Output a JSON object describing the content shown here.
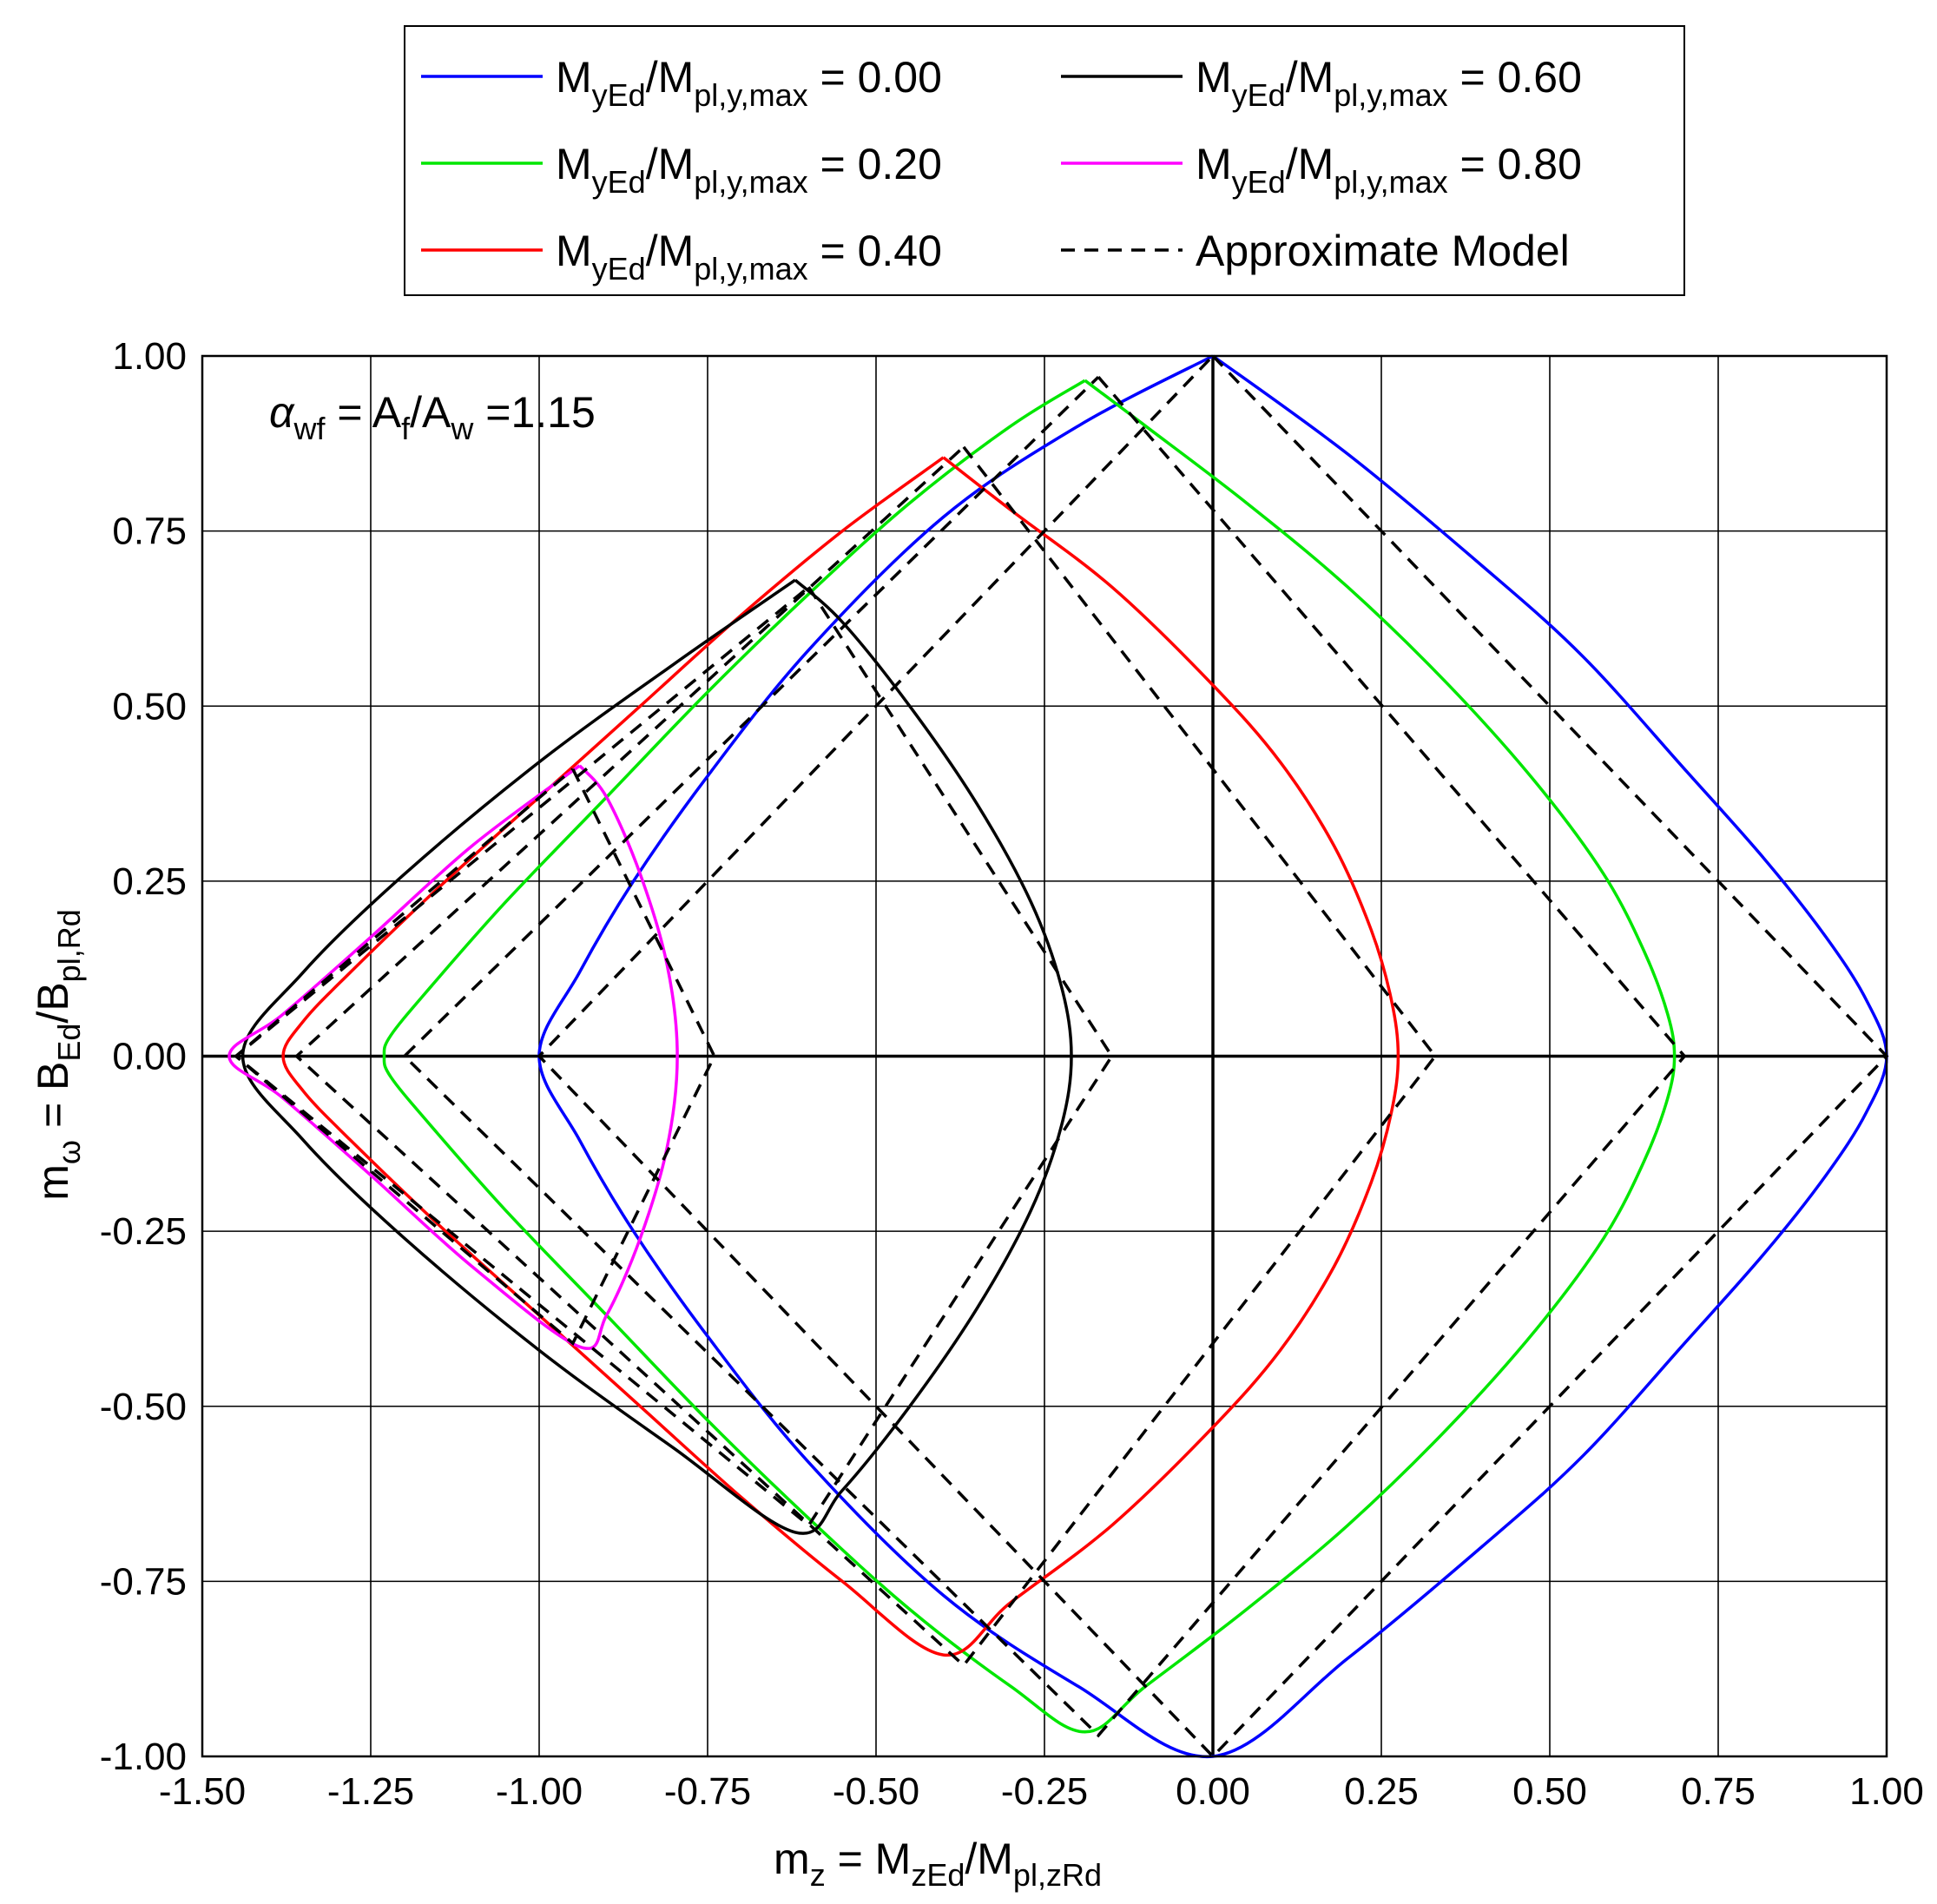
{
  "chart_data": {
    "type": "line",
    "title": "",
    "xlabel": {
      "parts": [
        "m",
        "z",
        " = M",
        "zEd",
        "/M",
        "pl,zRd"
      ]
    },
    "ylabel": {
      "parts": [
        "m",
        "ω",
        " = B",
        "Ed",
        "/B",
        "pl,Rd"
      ]
    },
    "xlim": [
      -1.5,
      1.0
    ],
    "ylim": [
      -1.0,
      1.0
    ],
    "xticks": [
      -1.5,
      -1.25,
      -1.0,
      -0.75,
      -0.5,
      -0.25,
      0.0,
      0.25,
      0.5,
      0.75,
      1.0
    ],
    "yticks": [
      -1.0,
      -0.75,
      -0.5,
      -0.25,
      0.0,
      0.25,
      0.5,
      0.75,
      1.0
    ],
    "xtick_labels": [
      "-1.50",
      "-1.25",
      "-1.00",
      "-0.75",
      "-0.50",
      "-0.25",
      "0.00",
      "0.25",
      "0.50",
      "0.75",
      "1.00"
    ],
    "ytick_labels": [
      "-1.00",
      "-0.75",
      "-0.50",
      "-0.25",
      "0.00",
      "0.25",
      "0.50",
      "0.75",
      "1.00"
    ],
    "grid": true,
    "legend_position": "top, above plot, two columns",
    "annotation": {
      "alpha": "α",
      "alpha_sub": "wf",
      "mid": " = A",
      "sub1": "f",
      "mid2": "/A",
      "sub2": "w",
      "value": " =1.15"
    },
    "series": [
      {
        "name": "MyEd/Mpl,y,max = 0.00",
        "legend": {
          "pre": "M",
          "s1": "yEd",
          "mid": "/M",
          "s2": "pl,y,max",
          "post": " = 0.00"
        },
        "color": "#0000ff",
        "style": "solid",
        "points": [
          [
            0.0,
            1.0
          ],
          [
            0.2,
            0.86
          ],
          [
            0.4,
            0.7
          ],
          [
            0.55,
            0.57
          ],
          [
            0.7,
            0.41
          ],
          [
            0.82,
            0.28
          ],
          [
            0.91,
            0.17
          ],
          [
            0.97,
            0.08
          ],
          [
            1.0,
            0.0
          ],
          [
            0.97,
            -0.08
          ],
          [
            0.91,
            -0.17
          ],
          [
            0.82,
            -0.28
          ],
          [
            0.7,
            -0.41
          ],
          [
            0.55,
            -0.57
          ],
          [
            0.4,
            -0.7
          ],
          [
            0.2,
            -0.86
          ],
          [
            0.0,
            -1.0
          ],
          [
            -0.2,
            -0.9
          ],
          [
            -0.4,
            -0.77
          ],
          [
            -0.6,
            -0.58
          ],
          [
            -0.75,
            -0.4
          ],
          [
            -0.86,
            -0.25
          ],
          [
            -0.94,
            -0.12
          ],
          [
            -1.0,
            0.0
          ],
          [
            -0.94,
            0.12
          ],
          [
            -0.86,
            0.25
          ],
          [
            -0.75,
            0.4
          ],
          [
            -0.6,
            0.58
          ],
          [
            -0.4,
            0.77
          ],
          [
            -0.2,
            0.9
          ],
          [
            0.0,
            1.0
          ]
        ]
      },
      {
        "name": "MyEd/Mpl,y,max = 0.20",
        "legend": {
          "pre": "M",
          "s1": "yEd",
          "mid": "/M",
          "s2": "pl,y,max",
          "post": " = 0.20"
        },
        "color": "#00e600",
        "style": "solid",
        "points": [
          [
            -0.19,
            0.965
          ],
          [
            -0.1,
            0.9
          ],
          [
            0.05,
            0.79
          ],
          [
            0.2,
            0.67
          ],
          [
            0.35,
            0.53
          ],
          [
            0.48,
            0.39
          ],
          [
            0.58,
            0.26
          ],
          [
            0.64,
            0.15
          ],
          [
            0.675,
            0.06
          ],
          [
            0.685,
            0.0
          ],
          [
            0.675,
            -0.06
          ],
          [
            0.64,
            -0.15
          ],
          [
            0.58,
            -0.26
          ],
          [
            0.48,
            -0.39
          ],
          [
            0.35,
            -0.53
          ],
          [
            0.2,
            -0.67
          ],
          [
            0.05,
            -0.79
          ],
          [
            -0.1,
            -0.9
          ],
          [
            -0.19,
            -0.965
          ],
          [
            -0.3,
            -0.9
          ],
          [
            -0.45,
            -0.79
          ],
          [
            -0.6,
            -0.66
          ],
          [
            -0.75,
            -0.52
          ],
          [
            -0.9,
            -0.37
          ],
          [
            -1.05,
            -0.22
          ],
          [
            -1.16,
            -0.1
          ],
          [
            -1.22,
            -0.03
          ],
          [
            -1.23,
            0.0
          ],
          [
            -1.22,
            0.03
          ],
          [
            -1.16,
            0.1
          ],
          [
            -1.05,
            0.22
          ],
          [
            -0.9,
            0.37
          ],
          [
            -0.75,
            0.52
          ],
          [
            -0.6,
            0.66
          ],
          [
            -0.45,
            0.79
          ],
          [
            -0.3,
            0.9
          ],
          [
            -0.19,
            0.965
          ]
        ]
      },
      {
        "name": "MyEd/Mpl,y,max = 0.40",
        "legend": {
          "pre": "M",
          "s1": "yEd",
          "mid": "/M",
          "s2": "pl,y,max",
          "post": " = 0.40"
        },
        "color": "#ff0000",
        "style": "solid",
        "points": [
          [
            -0.4,
            0.855
          ],
          [
            -0.3,
            0.78
          ],
          [
            -0.15,
            0.67
          ],
          [
            0.0,
            0.53
          ],
          [
            0.1,
            0.42
          ],
          [
            0.18,
            0.3
          ],
          [
            0.235,
            0.18
          ],
          [
            0.265,
            0.08
          ],
          [
            0.275,
            0.0
          ],
          [
            0.265,
            -0.08
          ],
          [
            0.235,
            -0.18
          ],
          [
            0.18,
            -0.3
          ],
          [
            0.1,
            -0.42
          ],
          [
            0.0,
            -0.53
          ],
          [
            -0.15,
            -0.67
          ],
          [
            -0.3,
            -0.78
          ],
          [
            -0.4,
            -0.855
          ],
          [
            -0.55,
            -0.75
          ],
          [
            -0.7,
            -0.63
          ],
          [
            -0.85,
            -0.5
          ],
          [
            -1.0,
            -0.37
          ],
          [
            -1.15,
            -0.24
          ],
          [
            -1.28,
            -0.12
          ],
          [
            -1.35,
            -0.05
          ],
          [
            -1.38,
            0.0
          ],
          [
            -1.35,
            0.05
          ],
          [
            -1.28,
            0.12
          ],
          [
            -1.15,
            0.24
          ],
          [
            -1.0,
            0.37
          ],
          [
            -0.85,
            0.5
          ],
          [
            -0.7,
            0.63
          ],
          [
            -0.55,
            0.75
          ],
          [
            -0.4,
            0.855
          ]
        ]
      },
      {
        "name": "MyEd/Mpl,y,max = 0.60",
        "legend": {
          "pre": "M",
          "s1": "yEd",
          "mid": "/M",
          "s2": "pl,y,max",
          "post": " = 0.60"
        },
        "color": "#000000",
        "style": "solid",
        "points": [
          [
            -0.62,
            0.68
          ],
          [
            -0.55,
            0.62
          ],
          [
            -0.45,
            0.5
          ],
          [
            -0.35,
            0.36
          ],
          [
            -0.27,
            0.22
          ],
          [
            -0.225,
            0.1
          ],
          [
            -0.21,
            0.0
          ],
          [
            -0.225,
            -0.1
          ],
          [
            -0.27,
            -0.22
          ],
          [
            -0.35,
            -0.36
          ],
          [
            -0.45,
            -0.5
          ],
          [
            -0.55,
            -0.62
          ],
          [
            -0.62,
            -0.68
          ],
          [
            -0.8,
            -0.56
          ],
          [
            -1.0,
            -0.42
          ],
          [
            -1.2,
            -0.26
          ],
          [
            -1.35,
            -0.12
          ],
          [
            -1.44,
            0.0
          ],
          [
            -1.35,
            0.12
          ],
          [
            -1.2,
            0.26
          ],
          [
            -1.0,
            0.42
          ],
          [
            -0.8,
            0.56
          ],
          [
            -0.62,
            0.68
          ]
        ]
      },
      {
        "name": "MyEd/Mpl,y,max = 0.80",
        "legend": {
          "pre": "M",
          "s1": "yEd",
          "mid": "/M",
          "s2": "pl,y,max",
          "post": " = 0.80"
        },
        "color": "#ff00ff",
        "style": "solid",
        "points": [
          [
            -0.94,
            0.415
          ],
          [
            -0.9,
            0.37
          ],
          [
            -0.85,
            0.26
          ],
          [
            -0.81,
            0.13
          ],
          [
            -0.795,
            0.0
          ],
          [
            -0.81,
            -0.13
          ],
          [
            -0.85,
            -0.26
          ],
          [
            -0.9,
            -0.37
          ],
          [
            -0.94,
            -0.415
          ],
          [
            -1.1,
            -0.3
          ],
          [
            -1.25,
            -0.17
          ],
          [
            -1.38,
            -0.06
          ],
          [
            -1.46,
            0.0
          ],
          [
            -1.38,
            0.06
          ],
          [
            -1.25,
            0.17
          ],
          [
            -1.1,
            0.3
          ],
          [
            -0.94,
            0.415
          ]
        ]
      },
      {
        "name": "Approximate Model",
        "legend": {
          "pre": "Approximate Model",
          "s1": "",
          "mid": "",
          "s2": "",
          "post": ""
        },
        "color": "#000000",
        "style": "dashed",
        "polygons": [
          [
            [
              0.0,
              1.0
            ],
            [
              1.0,
              0.0
            ],
            [
              0.0,
              -1.0
            ],
            [
              -1.0,
              0.0
            ],
            [
              0.0,
              1.0
            ]
          ],
          [
            [
              -0.17,
              0.97
            ],
            [
              0.7,
              0.0
            ],
            [
              -0.17,
              -0.97
            ],
            [
              -1.2,
              0.0
            ],
            [
              -0.17,
              0.97
            ]
          ],
          [
            [
              -0.37,
              0.87
            ],
            [
              0.33,
              0.0
            ],
            [
              -0.37,
              -0.87
            ],
            [
              -1.36,
              0.0
            ],
            [
              -0.37,
              0.87
            ]
          ],
          [
            [
              -0.6,
              0.67
            ],
            [
              -0.15,
              0.0
            ],
            [
              -0.6,
              -0.67
            ],
            [
              -1.45,
              0.0
            ],
            [
              -0.6,
              0.67
            ]
          ],
          [
            [
              -0.95,
              0.41
            ],
            [
              -0.74,
              0.0
            ],
            [
              -0.95,
              -0.41
            ],
            [
              -1.45,
              0.0
            ],
            [
              -0.95,
              0.41
            ]
          ]
        ]
      }
    ]
  }
}
